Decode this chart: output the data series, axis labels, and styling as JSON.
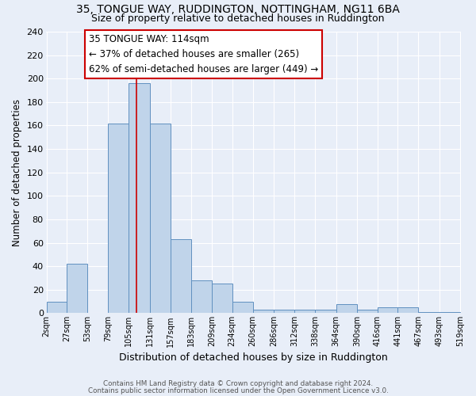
{
  "title1": "35, TONGUE WAY, RUDDINGTON, NOTTINGHAM, NG11 6BA",
  "title2": "Size of property relative to detached houses in Ruddington",
  "xlabel": "Distribution of detached houses by size in Ruddington",
  "ylabel": "Number of detached properties",
  "bin_edges": [
    2,
    27,
    53,
    79,
    105,
    131,
    157,
    183,
    209,
    234,
    260,
    286,
    312,
    338,
    364,
    390,
    416,
    441,
    467,
    493,
    519
  ],
  "bar_heights": [
    10,
    42,
    0,
    162,
    196,
    162,
    63,
    28,
    25,
    10,
    3,
    3,
    3,
    3,
    8,
    3,
    5,
    5,
    1,
    1
  ],
  "bar_color": "#c0d4ea",
  "bar_edge_color": "#6090c0",
  "vline_x": 114,
  "vline_color": "#cc0000",
  "annotation_title": "35 TONGUE WAY: 114sqm",
  "annotation_line1": "← 37% of detached houses are smaller (265)",
  "annotation_line2": "62% of semi-detached houses are larger (449) →",
  "annotation_box_facecolor": "#ffffff",
  "annotation_box_edgecolor": "#cc0000",
  "ylim": [
    0,
    240
  ],
  "yticks": [
    0,
    20,
    40,
    60,
    80,
    100,
    120,
    140,
    160,
    180,
    200,
    220,
    240
  ],
  "tick_labels": [
    "2sqm",
    "27sqm",
    "53sqm",
    "79sqm",
    "105sqm",
    "131sqm",
    "157sqm",
    "183sqm",
    "209sqm",
    "234sqm",
    "260sqm",
    "286sqm",
    "312sqm",
    "338sqm",
    "364sqm",
    "390sqm",
    "416sqm",
    "441sqm",
    "467sqm",
    "493sqm",
    "519sqm"
  ],
  "footer1": "Contains HM Land Registry data © Crown copyright and database right 2024.",
  "footer2": "Contains public sector information licensed under the Open Government Licence v3.0.",
  "bg_color": "#e8eef8",
  "title_fontsize": 10,
  "subtitle_fontsize": 9
}
